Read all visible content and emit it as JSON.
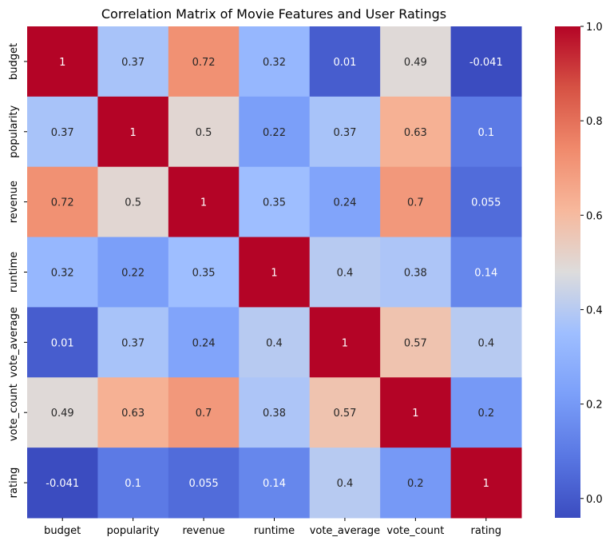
{
  "chart_data": {
    "type": "heatmap",
    "title": "Correlation Matrix of Movie Features and User Ratings",
    "colormap": "coolwarm",
    "x_labels": [
      "budget",
      "popularity",
      "revenue",
      "runtime",
      "vote_average",
      "vote_count",
      "rating"
    ],
    "y_labels": [
      "budget",
      "popularity",
      "revenue",
      "runtime",
      "vote_average",
      "vote_count",
      "rating"
    ],
    "values": [
      [
        1,
        0.37,
        0.72,
        0.32,
        0.01,
        0.49,
        -0.041
      ],
      [
        0.37,
        1,
        0.5,
        0.22,
        0.37,
        0.63,
        0.1
      ],
      [
        0.72,
        0.5,
        1,
        0.35,
        0.24,
        0.7,
        0.055
      ],
      [
        0.32,
        0.22,
        0.35,
        1,
        0.4,
        0.38,
        0.14
      ],
      [
        0.01,
        0.37,
        0.24,
        0.4,
        1,
        0.57,
        0.4
      ],
      [
        0.49,
        0.63,
        0.7,
        0.38,
        0.57,
        1,
        0.2
      ],
      [
        -0.041,
        0.1,
        0.055,
        0.14,
        0.4,
        0.2,
        1
      ]
    ],
    "annotations": [
      [
        "1",
        "0.37",
        "0.72",
        "0.32",
        "0.01",
        "0.49",
        "-0.041"
      ],
      [
        "0.37",
        "1",
        "0.5",
        "0.22",
        "0.37",
        "0.63",
        "0.1"
      ],
      [
        "0.72",
        "0.5",
        "1",
        "0.35",
        "0.24",
        "0.7",
        "0.055"
      ],
      [
        "0.32",
        "0.22",
        "0.35",
        "1",
        "0.4",
        "0.38",
        "0.14"
      ],
      [
        "0.01",
        "0.37",
        "0.24",
        "0.4",
        "1",
        "0.57",
        "0.4"
      ],
      [
        "0.49",
        "0.63",
        "0.7",
        "0.38",
        "0.57",
        "1",
        "0.2"
      ],
      [
        "-0.041",
        "0.1",
        "0.055",
        "0.14",
        "0.4",
        "0.2",
        "1"
      ]
    ],
    "colorbar": {
      "vmin": -0.041,
      "vmax": 1,
      "ticks": [
        0.0,
        0.2,
        0.4,
        0.6,
        0.8,
        1.0
      ],
      "tick_labels": [
        "0.0",
        "0.2",
        "0.4",
        "0.6",
        "0.8",
        "1.0"
      ]
    },
    "grid": false,
    "legend": "colorbar-right"
  }
}
